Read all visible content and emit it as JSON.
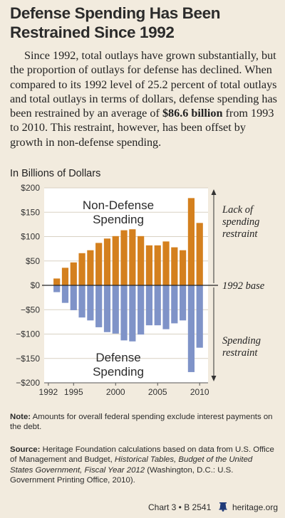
{
  "title": "Defense Spending Has Been Restrained Since 1992",
  "intro": {
    "before": "Since 1992, total outlays have grown substantially, but the proportion of outlays for defense has declined. When compared to its 1992 level of 25.2 percent of total outlays and total outlays in terms of dollars, defense spending has been restrained by an average of ",
    "highlight": "$86.6 billion",
    "after": " from 1993 to 2010. This restraint, however, has been offset by growth in non-defense spending."
  },
  "chart_data": {
    "type": "bar",
    "unit_label": "In Billions of Dollars",
    "x": [
      1993,
      1994,
      1995,
      1996,
      1997,
      1998,
      1999,
      2000,
      2001,
      2002,
      2003,
      2004,
      2005,
      2006,
      2007,
      2008,
      2009,
      2010
    ],
    "x_ticks": [
      "1992",
      "1995",
      "2000",
      "2005",
      "2010"
    ],
    "y_ticks": [
      "$200",
      "$150",
      "$100",
      "$50",
      "$0",
      "−$50",
      "−$100",
      "−$150",
      "−$200"
    ],
    "ylim": [
      -200,
      200
    ],
    "series": [
      {
        "name": "Non-Defense Spending",
        "color": "#d4801e",
        "values": [
          14,
          36,
          47,
          66,
          72,
          87,
          96,
          101,
          113,
          115,
          101,
          82,
          82,
          90,
          78,
          72,
          179,
          128
        ]
      },
      {
        "name": "Defense Spending",
        "color": "#7f93c8",
        "values": [
          -14,
          -36,
          -51,
          -66,
          -72,
          -86,
          -96,
          -99,
          -113,
          -115,
          -101,
          -82,
          -82,
          -90,
          -78,
          -72,
          -178,
          -128
        ]
      }
    ],
    "series_labels": {
      "top": [
        "Non-Defense",
        "Spending"
      ],
      "bottom": [
        "Defense",
        "Spending"
      ]
    },
    "annotations": {
      "lack": [
        "Lack of",
        "spending",
        "restraint"
      ],
      "base": "1992 base",
      "restraint": [
        "Spending",
        "restraint"
      ]
    },
    "grid": true
  },
  "note": {
    "label": "Note:",
    "text": " Amounts for overall federal spending exclude interest payments on the debt."
  },
  "source": {
    "label": "Source:",
    "text1": " Heritage Foundation calculations based on data from U.S. Office of Management and Budget, ",
    "italic": "Historical Tables, Budget of the United States Government, Fiscal Year 2012",
    "text2": " (Washington, D.C.: U.S. Government Printing Office, 2010)."
  },
  "footer": {
    "chart_id": "Chart 3 • B 2541",
    "site": "heritage.org"
  },
  "colors": {
    "background": "#f2ebde",
    "non_defense": "#d4801e",
    "defense": "#7f93c8"
  }
}
